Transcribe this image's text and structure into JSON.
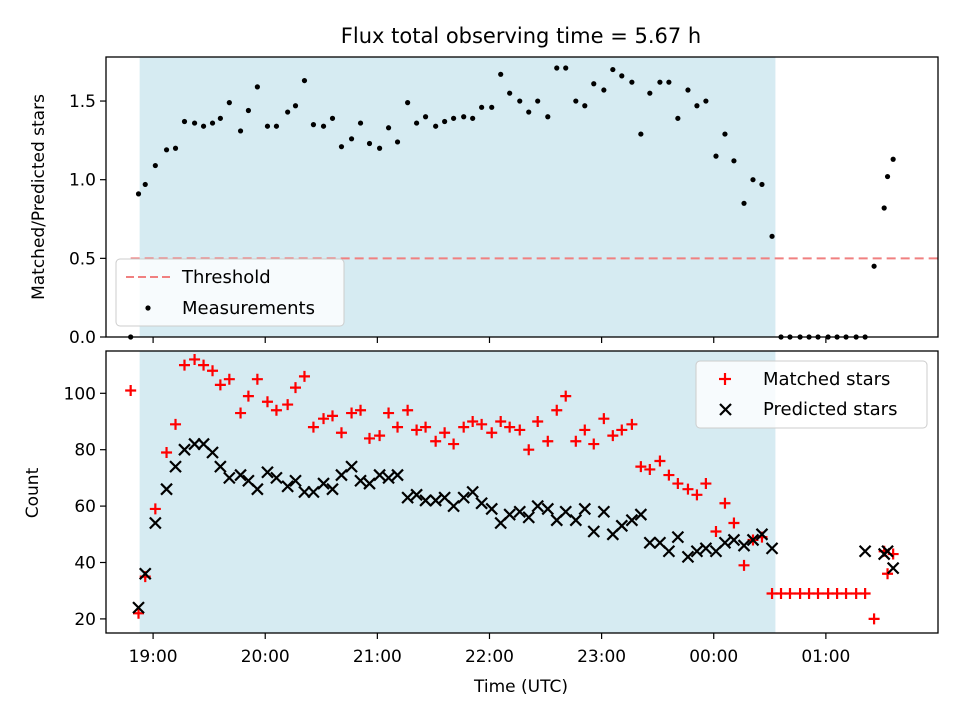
{
  "title": "Flux total observing time = 5.67 h",
  "x_axis": {
    "label": "Time (UTC)",
    "range_hours": [
      18.58,
      26.0
    ],
    "ticks": [
      {
        "value": 19,
        "label": "19:00"
      },
      {
        "value": 20,
        "label": "20:00"
      },
      {
        "value": 21,
        "label": "21:00"
      },
      {
        "value": 22,
        "label": "22:00"
      },
      {
        "value": 23,
        "label": "23:00"
      },
      {
        "value": 24,
        "label": "00:00"
      },
      {
        "value": 25,
        "label": "01:00"
      }
    ]
  },
  "observing_window": {
    "start_hour": 18.88,
    "end_hour": 24.55,
    "color": "#add8e6"
  },
  "colors": {
    "threshold": "#f08080",
    "measurements": "#000000",
    "matched": "#ff0000",
    "predicted": "#000000"
  },
  "chart_data": [
    {
      "type": "scatter",
      "ylabel": "Matched/Predicted stars",
      "ylim": [
        0,
        1.78
      ],
      "yticks": [
        {
          "value": 0,
          "label": "0.0"
        },
        {
          "value": 0.5,
          "label": "0.5"
        },
        {
          "value": 1.0,
          "label": "1.0"
        },
        {
          "value": 1.5,
          "label": "1.5"
        }
      ],
      "legend": {
        "placement": "lower-left",
        "entries": [
          {
            "label": "Threshold",
            "style": "dashed-line"
          },
          {
            "label": "Measurements",
            "style": "dot"
          }
        ]
      },
      "threshold": {
        "name": "Threshold",
        "value": 0.5,
        "x_range": [
          18.8,
          26.65
        ]
      },
      "series": [
        {
          "name": "Measurements",
          "x": [
            18.8,
            18.87,
            18.93,
            19.02,
            19.12,
            19.2,
            19.28,
            19.37,
            19.45,
            19.53,
            19.6,
            19.68,
            19.78,
            19.85,
            19.93,
            20.02,
            20.1,
            20.2,
            20.27,
            20.35,
            20.43,
            20.52,
            20.6,
            20.68,
            20.77,
            20.85,
            20.93,
            21.02,
            21.1,
            21.18,
            21.27,
            21.35,
            21.43,
            21.52,
            21.6,
            21.68,
            21.77,
            21.85,
            21.93,
            22.02,
            22.1,
            22.18,
            22.27,
            22.35,
            22.43,
            22.52,
            22.6,
            22.68,
            22.77,
            22.85,
            22.93,
            23.02,
            23.1,
            23.18,
            23.27,
            23.35,
            23.43,
            23.52,
            23.6,
            23.68,
            23.77,
            23.85,
            23.93,
            24.02,
            24.1,
            24.18,
            24.27,
            24.35,
            24.43,
            24.52,
            24.6,
            24.68,
            24.77,
            24.85,
            24.93,
            25.02,
            25.1,
            25.18,
            25.27,
            25.35,
            25.43,
            25.52,
            25.55,
            25.6
          ],
          "y": [
            0.0,
            0.91,
            0.97,
            1.09,
            1.19,
            1.2,
            1.37,
            1.36,
            1.34,
            1.36,
            1.39,
            1.49,
            1.31,
            1.44,
            1.59,
            1.34,
            1.34,
            1.43,
            1.47,
            1.63,
            1.35,
            1.34,
            1.39,
            1.21,
            1.26,
            1.36,
            1.23,
            1.2,
            1.33,
            1.24,
            1.49,
            1.36,
            1.4,
            1.34,
            1.37,
            1.39,
            1.4,
            1.39,
            1.46,
            1.46,
            1.67,
            1.55,
            1.5,
            1.43,
            1.5,
            1.4,
            1.71,
            1.71,
            1.5,
            1.47,
            1.61,
            1.57,
            1.7,
            1.66,
            1.62,
            1.29,
            1.55,
            1.62,
            1.62,
            1.39,
            1.57,
            1.47,
            1.5,
            1.15,
            1.29,
            1.12,
            0.85,
            1.0,
            0.97,
            0.64,
            0.0,
            0.0,
            0.0,
            0.0,
            0.0,
            0.0,
            0.0,
            0.0,
            0.0,
            0.0,
            0.45,
            0.82,
            1.02,
            1.13
          ]
        }
      ]
    },
    {
      "type": "scatter",
      "ylabel": "Count",
      "ylim": [
        15,
        115
      ],
      "yticks": [
        {
          "value": 20,
          "label": "20"
        },
        {
          "value": 40,
          "label": "40"
        },
        {
          "value": 60,
          "label": "60"
        },
        {
          "value": 80,
          "label": "80"
        },
        {
          "value": 100,
          "label": "100"
        }
      ],
      "legend": {
        "placement": "upper-right",
        "entries": [
          {
            "label": "Matched stars",
            "style": "plus"
          },
          {
            "label": "Predicted stars",
            "style": "x"
          }
        ]
      },
      "series": [
        {
          "name": "Matched stars",
          "x": [
            18.8,
            18.87,
            18.93,
            19.02,
            19.12,
            19.2,
            19.28,
            19.37,
            19.45,
            19.53,
            19.6,
            19.68,
            19.78,
            19.85,
            19.93,
            20.02,
            20.1,
            20.2,
            20.27,
            20.35,
            20.43,
            20.52,
            20.6,
            20.68,
            20.77,
            20.85,
            20.93,
            21.02,
            21.1,
            21.18,
            21.27,
            21.35,
            21.43,
            21.52,
            21.6,
            21.68,
            21.77,
            21.85,
            21.93,
            22.02,
            22.1,
            22.18,
            22.27,
            22.35,
            22.43,
            22.52,
            22.6,
            22.68,
            22.77,
            22.85,
            22.93,
            23.02,
            23.1,
            23.18,
            23.27,
            23.35,
            23.43,
            23.52,
            23.6,
            23.68,
            23.77,
            23.85,
            23.93,
            24.02,
            24.1,
            24.18,
            24.27,
            24.35,
            24.43,
            24.52,
            24.6,
            24.68,
            24.77,
            24.85,
            24.93,
            25.02,
            25.1,
            25.18,
            25.27,
            25.35,
            25.43,
            25.52,
            25.55,
            25.6
          ],
          "y": [
            101,
            22,
            35,
            59,
            79,
            89,
            110,
            112,
            110,
            108,
            103,
            105,
            93,
            99,
            105,
            97,
            94,
            96,
            102,
            106,
            88,
            91,
            92,
            86,
            93,
            94,
            84,
            85,
            93,
            88,
            94,
            87,
            88,
            83,
            86,
            82,
            88,
            90,
            89,
            86,
            90,
            88,
            87,
            80,
            90,
            83,
            94,
            99,
            83,
            87,
            82,
            91,
            85,
            87,
            89,
            74,
            73,
            76,
            71,
            68,
            66,
            64,
            68,
            51,
            61,
            54,
            39,
            48,
            49,
            29,
            29,
            29,
            29,
            29,
            29,
            29,
            29,
            29,
            29,
            29,
            20,
            44,
            36,
            43
          ]
        },
        {
          "name": "Predicted stars",
          "x": [
            18.87,
            18.93,
            19.02,
            19.12,
            19.2,
            19.28,
            19.37,
            19.45,
            19.53,
            19.6,
            19.68,
            19.78,
            19.85,
            19.93,
            20.02,
            20.1,
            20.2,
            20.27,
            20.35,
            20.43,
            20.52,
            20.6,
            20.68,
            20.77,
            20.85,
            20.93,
            21.02,
            21.1,
            21.18,
            21.27,
            21.35,
            21.43,
            21.52,
            21.6,
            21.68,
            21.77,
            21.85,
            21.93,
            22.02,
            22.1,
            22.18,
            22.27,
            22.35,
            22.43,
            22.52,
            22.6,
            22.68,
            22.77,
            22.85,
            22.93,
            23.02,
            23.1,
            23.18,
            23.27,
            23.35,
            23.43,
            23.52,
            23.6,
            23.68,
            23.77,
            23.85,
            23.93,
            24.02,
            24.1,
            24.18,
            24.27,
            24.35,
            24.43,
            24.52,
            25.35,
            25.52,
            25.55,
            25.6
          ],
          "y": [
            24,
            36,
            54,
            66,
            74,
            80,
            82,
            82,
            79,
            74,
            70,
            71,
            69,
            66,
            72,
            70,
            67,
            69,
            65,
            65,
            68,
            66,
            71,
            74,
            69,
            68,
            71,
            70,
            71,
            63,
            64,
            62,
            62,
            63,
            60,
            63,
            65,
            61,
            59,
            54,
            57,
            58,
            56,
            60,
            59,
            55,
            58,
            55,
            59,
            51,
            58,
            50,
            53,
            55,
            57,
            47,
            47,
            44,
            49,
            42,
            44,
            45,
            44,
            47,
            48,
            46,
            48,
            50,
            45,
            44,
            43,
            44,
            38
          ]
        }
      ]
    }
  ]
}
